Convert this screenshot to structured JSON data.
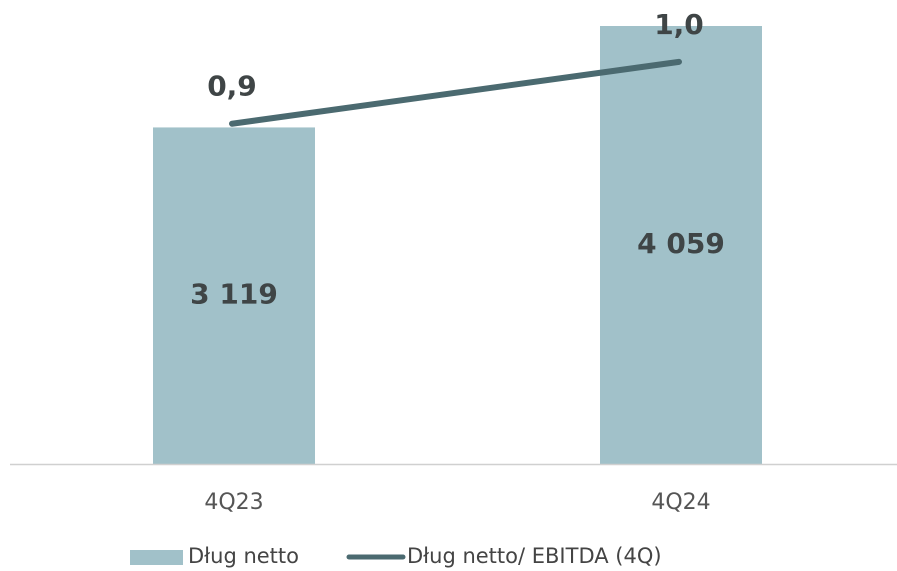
{
  "chart_data": {
    "type": "bar-line",
    "categories": [
      "4Q23",
      "4Q24"
    ],
    "series": [
      {
        "name": "Dług netto",
        "type": "bar",
        "axis": "y",
        "color": "#a1c1c9",
        "values": [
          3119,
          4059
        ],
        "value_labels": [
          "3 119",
          "4 059"
        ]
      },
      {
        "name": "Dług netto/ EBITDA (4Q)",
        "type": "line",
        "axis": "y2",
        "color": "#4b6a70",
        "values": [
          0.9,
          1.0
        ],
        "value_labels": [
          "0,9",
          "1,0"
        ]
      }
    ],
    "ylim": [
      0,
      4300
    ],
    "y2lim": [
      0.35,
      1.1
    ],
    "legend": "bottom"
  }
}
